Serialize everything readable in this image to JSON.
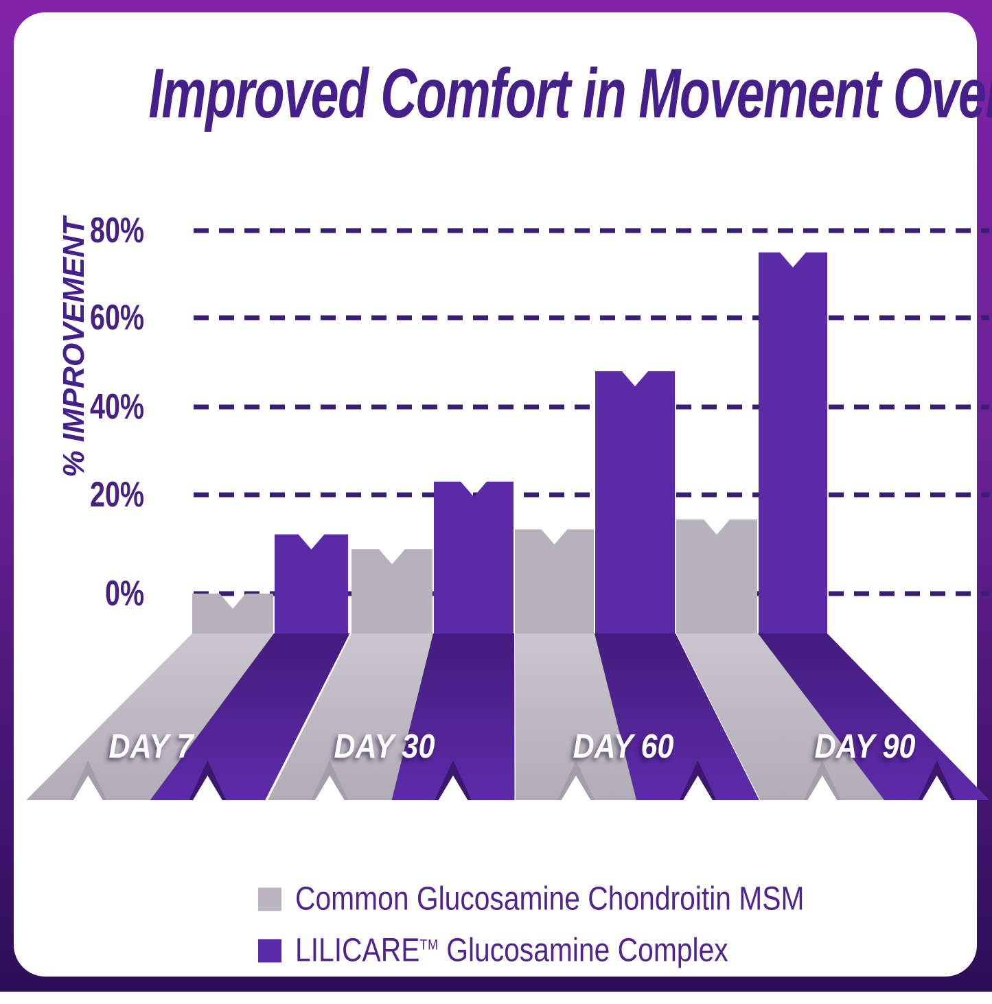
{
  "chart_data": {
    "type": "bar",
    "title": "Improved Comfort in Movement Over Time",
    "ylabel": "% IMPROVEMENT",
    "categories": [
      "DAY 7",
      "DAY 30",
      "DAY 60",
      "DAY 90"
    ],
    "yticks": [
      "80%",
      "60%",
      "40%",
      "20%",
      "0%"
    ],
    "ytick_values": [
      80,
      60,
      40,
      20,
      0
    ],
    "ylim": [
      0,
      80
    ],
    "grid": "horizontal-dashed",
    "legend_position": "bottom",
    "series": [
      {
        "name": "Common Glucosamine Chondroitin MSM",
        "color": "#b6b1bb",
        "values": [
          0,
          9,
          13,
          15
        ]
      },
      {
        "name": "LILICARE Glucosamine Complex",
        "color": "#5b2aa7",
        "values": [
          12,
          23,
          48,
          75
        ]
      }
    ]
  },
  "legend": {
    "items": [
      {
        "label": "Common Glucosamine Chondroitin MSM",
        "color": "#b9b4be"
      },
      {
        "brand": "LILICARE",
        "tm": "TM",
        "label_rest": " Glucosamine Complex",
        "color": "#5a2ba8"
      }
    ]
  },
  "colors": {
    "frame_top": "#8123a9",
    "frame_mid": "#6b2196",
    "frame_bottom": "#2c0e59",
    "card": "#ffffff",
    "heading_text": "#45208a",
    "axis_text": "#46217f",
    "gridline": "#3a1e73",
    "bar_common_face": "#b6b1bb",
    "bar_lilicare_face": "#5b2aa7",
    "ramp_common_top": "#cac6cf",
    "ramp_common_bottom": "#b1acb7",
    "ramp_lilicare_top": "#441c7e",
    "ramp_lilicare_bottom": "#5d2ba9",
    "notch_shadow_common": "#a39eaa",
    "notch_shadow_lilicare": "#3b176f",
    "day_label_text": "#ffffff",
    "legend_text": "#50248c"
  }
}
